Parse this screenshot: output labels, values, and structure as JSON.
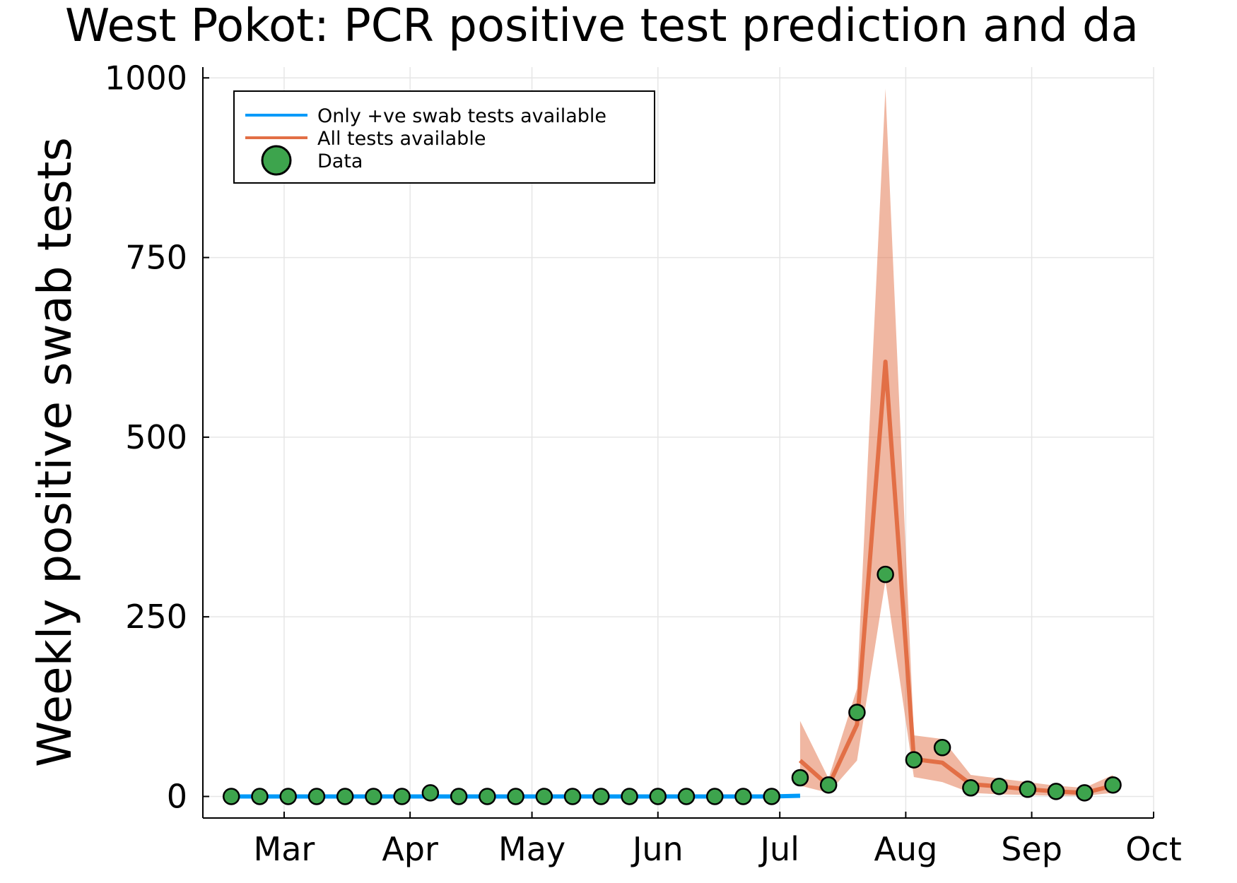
{
  "chart_data": {
    "type": "line",
    "title": "West Pokot: PCR positive test prediction and da",
    "xlabel": "",
    "ylabel": "Weekly positive swab tests",
    "ylim": [
      -30,
      1015
    ],
    "xlim": [
      "2020-02-10",
      "2020-10-01"
    ],
    "grid": true,
    "legend_position": "top-left",
    "x_ticks": [
      {
        "date": "2020-03-01",
        "label": "Mar"
      },
      {
        "date": "2020-04-01",
        "label": "Apr"
      },
      {
        "date": "2020-05-01",
        "label": "May"
      },
      {
        "date": "2020-06-01",
        "label": "Jun"
      },
      {
        "date": "2020-07-01",
        "label": "Jul"
      },
      {
        "date": "2020-08-01",
        "label": "Aug"
      },
      {
        "date": "2020-09-01",
        "label": "Sep"
      },
      {
        "date": "2020-10-01",
        "label": "Oct"
      }
    ],
    "y_ticks": [
      0,
      250,
      500,
      750,
      1000
    ],
    "series": [
      {
        "name": "Only +ve swab tests available",
        "kind": "line",
        "color": "#009af9",
        "x": [
          "2020-02-17",
          "2020-02-24",
          "2020-03-02",
          "2020-03-09",
          "2020-03-16",
          "2020-03-23",
          "2020-03-30",
          "2020-04-06",
          "2020-04-13",
          "2020-04-20",
          "2020-04-27",
          "2020-05-04",
          "2020-05-11",
          "2020-05-18",
          "2020-05-25",
          "2020-06-01",
          "2020-06-08",
          "2020-06-15",
          "2020-06-22",
          "2020-06-29",
          "2020-07-06"
        ],
        "y": [
          0,
          0,
          0,
          0,
          0,
          0,
          0,
          0,
          0,
          0,
          0,
          0,
          0,
          0,
          0,
          0,
          0,
          0,
          0,
          0,
          1
        ]
      },
      {
        "name": "All tests available",
        "kind": "line_with_band",
        "color": "#e26f46",
        "band_color": "#e26f46",
        "x": [
          "2020-07-06",
          "2020-07-13",
          "2020-07-20",
          "2020-07-27",
          "2020-08-03",
          "2020-08-10",
          "2020-08-17",
          "2020-08-24",
          "2020-08-31",
          "2020-09-07",
          "2020-09-14",
          "2020-09-21"
        ],
        "y": [
          50,
          15,
          100,
          605,
          52,
          47,
          17,
          14,
          10,
          7,
          5,
          15
        ],
        "lower": [
          15,
          5,
          50,
          300,
          27,
          20,
          5,
          3,
          2,
          1,
          1,
          5
        ],
        "upper": [
          105,
          25,
          150,
          985,
          85,
          80,
          30,
          25,
          20,
          15,
          12,
          30
        ]
      },
      {
        "name": "Data",
        "kind": "scatter",
        "color": "#3da44d",
        "x": [
          "2020-02-17",
          "2020-02-24",
          "2020-03-02",
          "2020-03-09",
          "2020-03-16",
          "2020-03-23",
          "2020-03-30",
          "2020-04-06",
          "2020-04-13",
          "2020-04-20",
          "2020-04-27",
          "2020-05-04",
          "2020-05-11",
          "2020-05-18",
          "2020-05-25",
          "2020-06-01",
          "2020-06-08",
          "2020-06-15",
          "2020-06-22",
          "2020-06-29",
          "2020-07-06",
          "2020-07-13",
          "2020-07-20",
          "2020-07-27",
          "2020-08-03",
          "2020-08-10",
          "2020-08-17",
          "2020-08-24",
          "2020-08-31",
          "2020-09-07",
          "2020-09-14",
          "2020-09-21"
        ],
        "y": [
          0,
          0,
          0,
          0,
          0,
          0,
          0,
          5,
          0,
          0,
          0,
          0,
          0,
          0,
          0,
          0,
          0,
          0,
          0,
          0,
          26,
          16,
          117,
          309,
          51,
          68,
          12,
          14,
          10,
          7,
          5,
          16
        ]
      }
    ]
  }
}
